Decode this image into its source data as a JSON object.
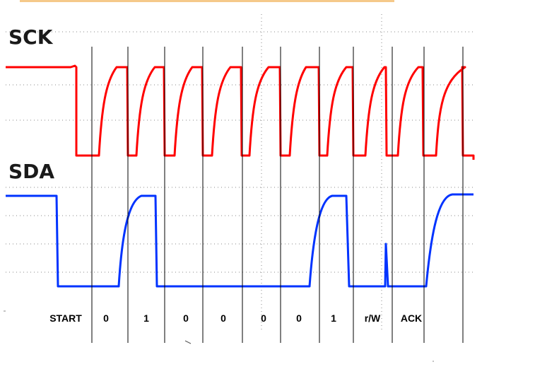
{
  "signals": {
    "sck": {
      "label": "SCK",
      "color": "#ff0000"
    },
    "sda": {
      "label": "SDA",
      "color": "#0033ff"
    }
  },
  "top_bar_color": "#f5c98a",
  "bits": [
    "START",
    "0",
    "1",
    "0",
    "0",
    "0",
    "0",
    "1",
    "r/W",
    "ACK"
  ]
}
